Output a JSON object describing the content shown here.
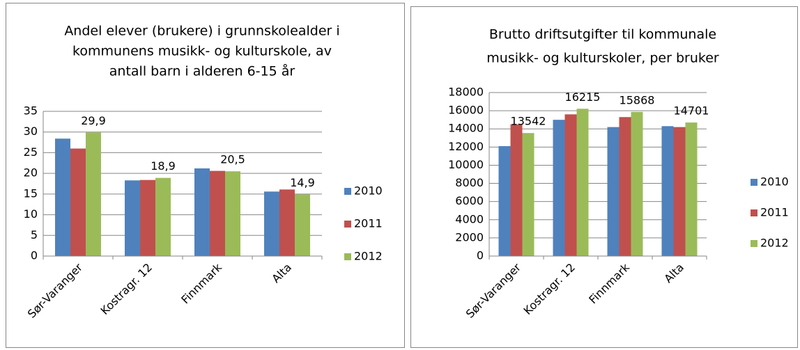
{
  "chart_data": [
    {
      "type": "bar",
      "title": [
        "Andel elever (brukere) i grunnskolealder i",
        "kommunens musikk- og kulturskole, av",
        "antall barn i alderen 6-15 år"
      ],
      "categories": [
        "Sør-Varanger",
        "Kostragr. 12",
        "Finnmark",
        "Alta"
      ],
      "series": [
        {
          "name": "2010",
          "color": "#4f81bd",
          "values": [
            28.4,
            18.3,
            21.2,
            15.6
          ]
        },
        {
          "name": "2011",
          "color": "#c0504d",
          "values": [
            26,
            18.4,
            20.6,
            16.1
          ]
        },
        {
          "name": "2012",
          "color": "#9bbb59",
          "values": [
            29.9,
            18.9,
            20.5,
            14.9
          ],
          "value_labels": [
            "29,9",
            "18,9",
            "20,5",
            "14,9"
          ],
          "data_labels": true
        }
      ],
      "ylim": [
        0,
        35
      ],
      "yticks": [
        0,
        5,
        10,
        15,
        20,
        25,
        30,
        35
      ],
      "grid": true,
      "legend": "right"
    },
    {
      "type": "bar",
      "title": [
        "Brutto driftsutgifter til kommunale",
        "musikk- og kulturskoler, per bruker"
      ],
      "categories": [
        "Sør-Varanger",
        "Kostragr. 12",
        "Finnmark",
        "Alta"
      ],
      "series": [
        {
          "name": "2010",
          "color": "#4f81bd",
          "values": [
            12100,
            15000,
            14200,
            14300
          ]
        },
        {
          "name": "2011",
          "color": "#c0504d",
          "values": [
            14500,
            15600,
            15300,
            14200
          ]
        },
        {
          "name": "2012",
          "color": "#9bbb59",
          "values": [
            13542,
            16215,
            15868,
            14701
          ],
          "data_labels": true
        }
      ],
      "ylim": [
        0,
        18000
      ],
      "yticks": [
        0,
        2000,
        4000,
        6000,
        8000,
        10000,
        12000,
        14000,
        16000,
        18000
      ],
      "grid": true,
      "legend": "right"
    }
  ]
}
